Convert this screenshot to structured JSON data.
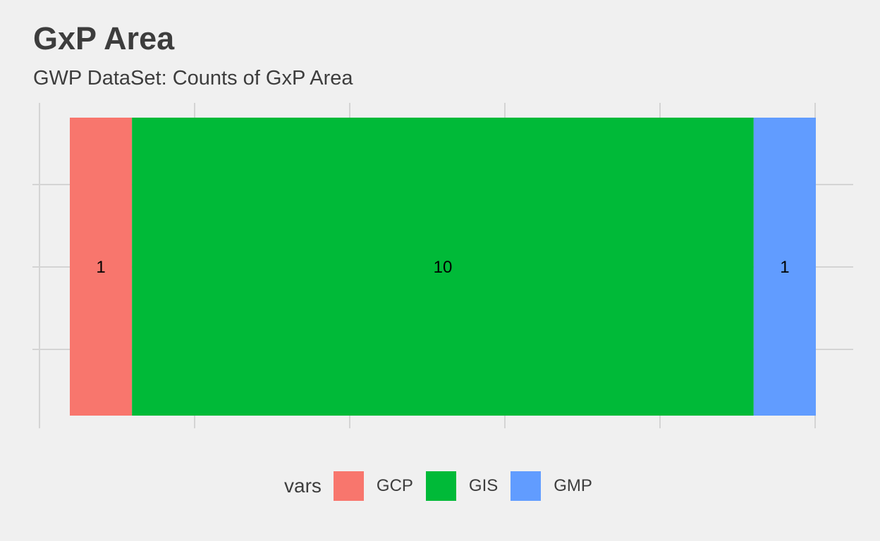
{
  "title": "GxP Area",
  "subtitle": "GWP DataSet: Counts of GxP Area",
  "chart_data": {
    "type": "bar",
    "orientation": "horizontal-stacked",
    "series": [
      {
        "name": "GCP",
        "value": 1,
        "color": "#F8766D"
      },
      {
        "name": "GIS",
        "value": 10,
        "color": "#00BA38"
      },
      {
        "name": "GMP",
        "value": 1,
        "color": "#619CFF"
      }
    ],
    "data_labels": [
      "1",
      "10",
      "1"
    ],
    "xlabel": "",
    "ylabel": "",
    "grid": true,
    "legend": {
      "title": "vars",
      "placement": "bottom",
      "items": [
        "GCP",
        "GIS",
        "GMP"
      ]
    }
  }
}
